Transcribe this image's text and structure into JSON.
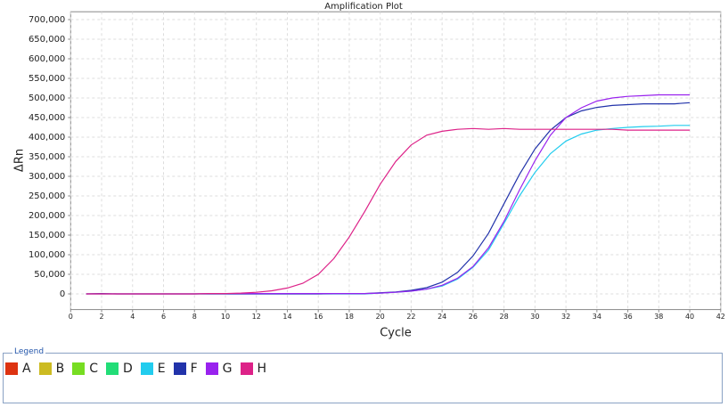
{
  "chart_data": {
    "type": "line",
    "title": "Amplification Plot",
    "x_label": "Cycle",
    "y_label": "ΔRn",
    "x": [
      1,
      2,
      3,
      4,
      5,
      6,
      7,
      8,
      9,
      10,
      11,
      12,
      13,
      14,
      15,
      16,
      17,
      18,
      19,
      20,
      21,
      22,
      23,
      24,
      25,
      26,
      27,
      28,
      29,
      30,
      31,
      32,
      33,
      34,
      35,
      36,
      37,
      38,
      39,
      40
    ],
    "xlim": [
      0,
      42
    ],
    "xticks": [
      0,
      2,
      4,
      6,
      8,
      10,
      12,
      14,
      16,
      18,
      20,
      22,
      24,
      26,
      28,
      30,
      32,
      34,
      36,
      38,
      40,
      42
    ],
    "ylim": [
      -40000,
      720000
    ],
    "yticks": [
      {
        "value": 0,
        "label": "0"
      },
      {
        "value": 50000,
        "label": "50,000"
      },
      {
        "value": 100000,
        "label": "100,000"
      },
      {
        "value": 150000,
        "label": "150,000"
      },
      {
        "value": 200000,
        "label": "200,000"
      },
      {
        "value": 250000,
        "label": "250,000"
      },
      {
        "value": 300000,
        "label": "300,000"
      },
      {
        "value": 350000,
        "label": "350,000"
      },
      {
        "value": 400000,
        "label": "400,000"
      },
      {
        "value": 450000,
        "label": "450,000"
      },
      {
        "value": 500000,
        "label": "500,000"
      },
      {
        "value": 550000,
        "label": "550,000"
      },
      {
        "value": 600000,
        "label": "600,000"
      },
      {
        "value": 650000,
        "label": "650,000"
      },
      {
        "value": 700000,
        "label": "700,000"
      }
    ],
    "grid": true,
    "legend_title": "Legend",
    "series": [
      {
        "name": "A",
        "color": "#dd3311",
        "values": [
          null,
          null,
          null,
          null,
          null,
          null,
          null,
          null,
          null,
          null,
          null,
          null,
          null,
          null,
          null,
          null,
          null,
          null,
          null,
          null,
          null,
          null,
          null,
          null,
          null,
          null,
          null,
          null,
          null,
          null,
          null,
          null,
          null,
          null,
          null,
          null,
          null,
          null,
          null,
          null
        ]
      },
      {
        "name": "B",
        "color": "#ccbb22",
        "values": [
          null,
          null,
          null,
          null,
          null,
          null,
          null,
          null,
          null,
          null,
          null,
          null,
          null,
          null,
          null,
          null,
          null,
          null,
          null,
          null,
          null,
          null,
          null,
          null,
          null,
          null,
          null,
          null,
          null,
          null,
          null,
          null,
          null,
          null,
          null,
          null,
          null,
          null,
          null,
          null
        ]
      },
      {
        "name": "C",
        "color": "#77dd22",
        "values": [
          null,
          null,
          null,
          null,
          null,
          null,
          null,
          null,
          null,
          null,
          null,
          null,
          null,
          null,
          null,
          null,
          null,
          null,
          null,
          null,
          null,
          null,
          null,
          null,
          null,
          null,
          null,
          null,
          null,
          null,
          null,
          null,
          null,
          null,
          null,
          null,
          null,
          null,
          null,
          null
        ]
      },
      {
        "name": "D",
        "color": "#22dd77",
        "values": [
          null,
          null,
          null,
          null,
          null,
          null,
          null,
          null,
          null,
          null,
          null,
          null,
          null,
          null,
          null,
          null,
          null,
          null,
          null,
          null,
          null,
          null,
          null,
          null,
          null,
          null,
          null,
          null,
          null,
          null,
          null,
          null,
          null,
          null,
          null,
          null,
          null,
          null,
          null,
          null
        ]
      },
      {
        "name": "E",
        "color": "#22ccee",
        "values": [
          0,
          0,
          0,
          0,
          0,
          0,
          0,
          0,
          0,
          0,
          0,
          0,
          0,
          0,
          0,
          0,
          0,
          0,
          0,
          2000,
          4000,
          7000,
          12000,
          20000,
          38000,
          68000,
          112000,
          180000,
          250000,
          310000,
          358000,
          390000,
          408000,
          418000,
          422000,
          425000,
          427000,
          428000,
          430000,
          430000
        ]
      },
      {
        "name": "F",
        "color": "#2233aa",
        "values": [
          0,
          1000,
          0,
          0,
          0,
          0,
          0,
          0,
          0,
          0,
          0,
          0,
          0,
          0,
          0,
          0,
          1000,
          1000,
          1000,
          3000,
          5000,
          9000,
          16000,
          30000,
          55000,
          97000,
          155000,
          230000,
          305000,
          370000,
          418000,
          450000,
          467000,
          476000,
          481000,
          483000,
          485000,
          485000,
          485000,
          488000
        ]
      },
      {
        "name": "G",
        "color": "#9922ee",
        "values": [
          0,
          0,
          0,
          0,
          0,
          0,
          0,
          0,
          1000,
          1000,
          1000,
          1000,
          1000,
          1000,
          1000,
          1000,
          1000,
          1000,
          1000,
          2000,
          4000,
          7000,
          12000,
          22000,
          40000,
          70000,
          118000,
          185000,
          265000,
          340000,
          405000,
          450000,
          475000,
          492000,
          500000,
          504000,
          506000,
          508000,
          508000,
          508000
        ]
      },
      {
        "name": "H",
        "color": "#dd2288",
        "values": [
          0,
          0,
          0,
          0,
          0,
          0,
          0,
          0,
          1000,
          1000,
          2000,
          4000,
          8000,
          15000,
          27000,
          50000,
          90000,
          145000,
          210000,
          280000,
          338000,
          380000,
          405000,
          415000,
          420000,
          422000,
          420000,
          422000,
          420000,
          420000,
          420000,
          420000,
          420000,
          420000,
          420000,
          418000,
          418000,
          418000,
          418000,
          418000
        ]
      }
    ]
  }
}
